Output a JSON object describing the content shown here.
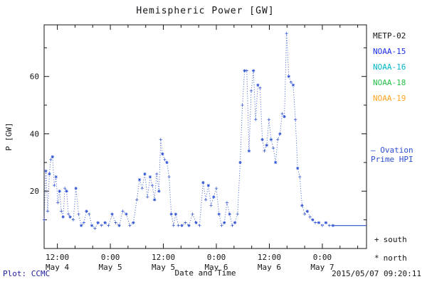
{
  "chart_data": {
    "type": "line",
    "title": "Hemispheric Power [GW]",
    "xlabel": "Date and Time",
    "ylabel": "P [GW]",
    "ylim": [
      0,
      78
    ],
    "yticks": [
      20,
      40,
      60
    ],
    "y_minor_ticks": [
      10,
      30,
      50,
      70
    ],
    "x_range_hours": [
      9,
      82
    ],
    "x_minor_step": 4,
    "xticks": [
      {
        "hour": 12,
        "time": "12:00",
        "date": "May 4"
      },
      {
        "hour": 24,
        "time": "0:00",
        "date": "May 5"
      },
      {
        "hour": 36,
        "time": "12:00",
        "date": "May 5"
      },
      {
        "hour": 48,
        "time": "0:00",
        "date": "May 6"
      },
      {
        "hour": 60,
        "time": "12:00",
        "date": "May 6"
      },
      {
        "hour": 72,
        "time": "0:00",
        "date": "May 7"
      }
    ],
    "series": [
      {
        "name": "Ovation Prime HPI",
        "color": "#2b4fd0",
        "linestyle": "dotted",
        "marker_meaning": {
          "plus": "south",
          "asterisk": "north"
        },
        "points": [
          [
            9.0,
            10
          ],
          [
            9.4,
            27
          ],
          [
            9.8,
            13
          ],
          [
            10.2,
            26
          ],
          [
            10.5,
            31
          ],
          [
            10.9,
            32
          ],
          [
            11.3,
            22
          ],
          [
            11.7,
            25
          ],
          [
            12.1,
            16
          ],
          [
            12.5,
            20
          ],
          [
            12.9,
            13
          ],
          [
            13.3,
            11
          ],
          [
            13.7,
            21
          ],
          [
            14.1,
            20
          ],
          [
            14.5,
            12
          ],
          [
            14.9,
            11
          ],
          [
            15.6,
            10
          ],
          [
            16.2,
            21
          ],
          [
            16.8,
            12
          ],
          [
            17.4,
            8
          ],
          [
            18.0,
            9
          ],
          [
            18.6,
            13
          ],
          [
            19.2,
            12
          ],
          [
            19.8,
            8
          ],
          [
            20.5,
            7
          ],
          [
            21.2,
            9
          ],
          [
            22.0,
            8
          ],
          [
            22.8,
            9
          ],
          [
            23.6,
            8
          ],
          [
            24.4,
            12
          ],
          [
            25.2,
            9
          ],
          [
            26.0,
            8
          ],
          [
            26.8,
            13
          ],
          [
            27.6,
            12
          ],
          [
            28.4,
            8
          ],
          [
            29.2,
            9
          ],
          [
            30.0,
            17
          ],
          [
            30.6,
            24
          ],
          [
            31.2,
            21
          ],
          [
            31.8,
            26
          ],
          [
            32.4,
            18
          ],
          [
            33.0,
            25
          ],
          [
            33.5,
            22
          ],
          [
            34.0,
            17
          ],
          [
            34.5,
            26
          ],
          [
            35.0,
            20
          ],
          [
            35.4,
            38
          ],
          [
            35.8,
            33
          ],
          [
            36.3,
            31
          ],
          [
            36.8,
            30
          ],
          [
            37.3,
            25
          ],
          [
            37.8,
            12
          ],
          [
            38.3,
            8
          ],
          [
            38.8,
            12
          ],
          [
            39.4,
            8
          ],
          [
            40.2,
            8
          ],
          [
            41.0,
            9
          ],
          [
            41.8,
            8
          ],
          [
            42.6,
            12
          ],
          [
            43.4,
            9
          ],
          [
            44.2,
            8
          ],
          [
            45.0,
            23
          ],
          [
            45.6,
            17
          ],
          [
            46.2,
            22
          ],
          [
            46.8,
            15
          ],
          [
            47.4,
            18
          ],
          [
            48.0,
            21
          ],
          [
            48.6,
            12
          ],
          [
            49.2,
            8
          ],
          [
            49.8,
            9
          ],
          [
            50.4,
            16
          ],
          [
            51.0,
            12
          ],
          [
            51.6,
            8
          ],
          [
            52.2,
            9
          ],
          [
            52.8,
            12
          ],
          [
            53.4,
            30
          ],
          [
            53.9,
            50
          ],
          [
            54.4,
            62
          ],
          [
            54.9,
            62
          ],
          [
            55.4,
            34
          ],
          [
            55.9,
            55
          ],
          [
            56.4,
            62
          ],
          [
            56.9,
            45
          ],
          [
            57.4,
            57
          ],
          [
            57.9,
            56
          ],
          [
            58.4,
            38
          ],
          [
            58.9,
            34
          ],
          [
            59.4,
            36
          ],
          [
            59.9,
            45
          ],
          [
            60.4,
            38
          ],
          [
            60.9,
            35
          ],
          [
            61.4,
            30
          ],
          [
            61.9,
            38
          ],
          [
            62.4,
            40
          ],
          [
            62.9,
            47
          ],
          [
            63.4,
            46
          ],
          [
            63.9,
            75
          ],
          [
            64.4,
            60
          ],
          [
            64.9,
            58
          ],
          [
            65.4,
            57
          ],
          [
            65.9,
            45
          ],
          [
            66.4,
            28
          ],
          [
            66.9,
            25
          ],
          [
            67.4,
            15
          ],
          [
            68.0,
            12
          ],
          [
            68.6,
            13
          ],
          [
            69.2,
            11
          ],
          [
            69.8,
            10
          ],
          [
            70.4,
            9
          ],
          [
            71.2,
            9
          ],
          [
            72.0,
            8
          ],
          [
            72.8,
            9
          ],
          [
            73.6,
            8
          ],
          [
            74.4,
            8
          ]
        ]
      }
    ],
    "current_level_line": {
      "from_hour": 74.4,
      "to_hour": 82,
      "value": 8,
      "color": "#2b4fd0"
    }
  },
  "legend": {
    "satellites": [
      {
        "label": "METP-02",
        "color": "#15151a"
      },
      {
        "label": "NOAA-15",
        "color": "#1a2fe0"
      },
      {
        "label": "NOAA-16",
        "color": "#00b7c4"
      },
      {
        "label": "NOAA-18",
        "color": "#27c04a"
      },
      {
        "label": "NOAA-19",
        "color": "#ffA321"
      }
    ],
    "ovation": {
      "line1": "— Ovation",
      "line2": "Prime HPI",
      "color": "#2b4fd0"
    },
    "markers": [
      {
        "symbol": "+",
        "label": "south"
      },
      {
        "symbol": "*",
        "label": "north"
      }
    ]
  },
  "footer": {
    "left": "Plot: CCMC",
    "right": "2015/05/07 09:20:11"
  }
}
